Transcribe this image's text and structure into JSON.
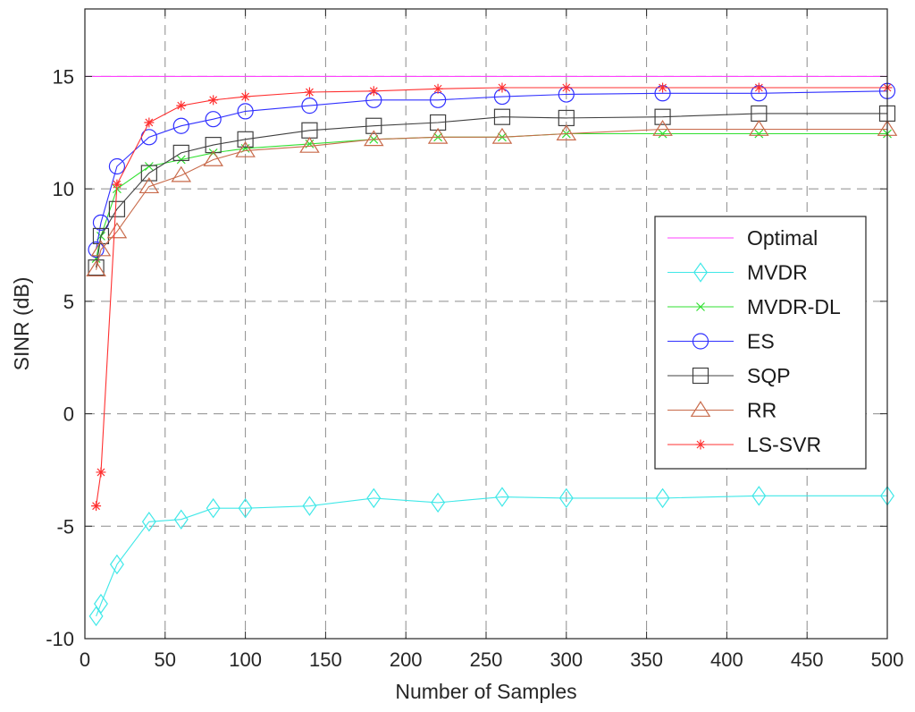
{
  "chart_data": {
    "type": "line",
    "title": "",
    "xlabel": "Number of Samples",
    "ylabel": "SINR (dB)",
    "xlim": [
      0,
      500
    ],
    "ylim": [
      -10,
      18
    ],
    "xticks": [
      0,
      50,
      100,
      150,
      200,
      250,
      300,
      350,
      400,
      450,
      500
    ],
    "yticks": [
      -10,
      -5,
      0,
      5,
      10,
      15
    ],
    "xtick_labels": [
      "0",
      "50",
      "100",
      "150",
      "200",
      "250",
      "300",
      "350",
      "400",
      "450",
      "500"
    ],
    "ytick_labels": [
      "-10",
      "-5",
      "0",
      "5",
      "10",
      "15"
    ],
    "grid": "dashed",
    "legend_position": "center-right",
    "series": [
      {
        "name": "Optimal",
        "color": "#ff40ff",
        "marker": "none",
        "x": [
          0,
          500
        ],
        "values": [
          15.0,
          15.0
        ]
      },
      {
        "name": "MVDR",
        "color": "#40e8e8",
        "marker": "diamond",
        "x": [
          7,
          10,
          20,
          40,
          60,
          80,
          100,
          140,
          180,
          220,
          260,
          300,
          360,
          420,
          500
        ],
        "values": [
          -9.0,
          -8.45,
          -6.7,
          -4.8,
          -4.7,
          -4.2,
          -4.2,
          -4.1,
          -3.75,
          -3.95,
          -3.7,
          -3.75,
          -3.75,
          -3.65,
          -3.65
        ]
      },
      {
        "name": "MVDR-DL",
        "color": "#30e030",
        "marker": "x",
        "x": [
          7,
          10,
          20,
          40,
          60,
          80,
          100,
          140,
          180,
          220,
          260,
          300,
          360,
          420,
          500
        ],
        "values": [
          6.9,
          7.9,
          10.0,
          11.0,
          11.3,
          11.6,
          11.8,
          12.0,
          12.2,
          12.3,
          12.3,
          12.45,
          12.45,
          12.45,
          12.45
        ]
      },
      {
        "name": "ES",
        "color": "#3030ff",
        "marker": "circle",
        "x": [
          7,
          10,
          20,
          40,
          60,
          80,
          100,
          140,
          180,
          220,
          260,
          300,
          360,
          420,
          500
        ],
        "values": [
          7.3,
          8.5,
          11.0,
          12.3,
          12.8,
          13.1,
          13.45,
          13.7,
          13.95,
          13.95,
          14.1,
          14.2,
          14.25,
          14.25,
          14.35
        ]
      },
      {
        "name": "SQP",
        "color": "#404040",
        "marker": "square",
        "x": [
          7,
          10,
          20,
          40,
          60,
          80,
          100,
          140,
          180,
          220,
          260,
          300,
          360,
          420,
          500
        ],
        "values": [
          6.5,
          7.9,
          9.1,
          10.7,
          11.6,
          11.95,
          12.2,
          12.6,
          12.8,
          12.95,
          13.2,
          13.15,
          13.2,
          13.35,
          13.35
        ]
      },
      {
        "name": "RR",
        "color": "#c86a4a",
        "marker": "triangle",
        "x": [
          7,
          10,
          20,
          40,
          60,
          80,
          100,
          140,
          180,
          220,
          260,
          300,
          360,
          420,
          500
        ],
        "values": [
          6.4,
          7.3,
          8.1,
          10.1,
          10.6,
          11.3,
          11.7,
          11.9,
          12.2,
          12.3,
          12.3,
          12.45,
          12.65,
          12.65,
          12.65
        ]
      },
      {
        "name": "LS-SVR",
        "color": "#ff3030",
        "marker": "star",
        "x": [
          7,
          10,
          20,
          40,
          60,
          80,
          100,
          140,
          180,
          220,
          260,
          300,
          360,
          420,
          500
        ],
        "values": [
          -4.1,
          -2.6,
          10.2,
          12.95,
          13.7,
          13.95,
          14.1,
          14.3,
          14.35,
          14.45,
          14.5,
          14.5,
          14.5,
          14.5,
          14.5
        ]
      }
    ]
  }
}
